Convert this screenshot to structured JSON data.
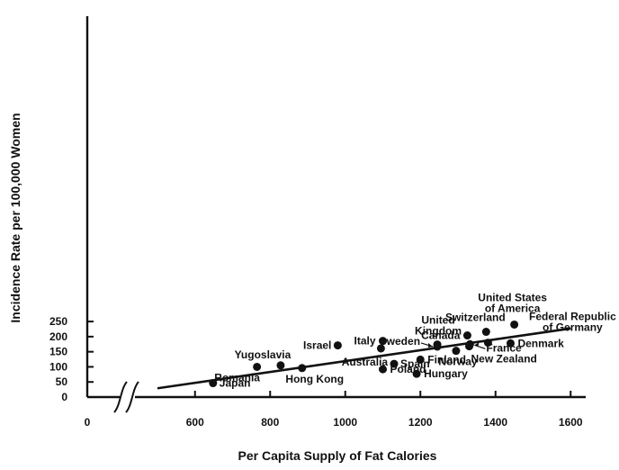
{
  "chart_data": {
    "type": "scatter",
    "title": "",
    "xlabel": "Per Capita Supply of Fat Calories",
    "ylabel": "Incidence Rate per 100,000 Women",
    "xlim": [
      500,
      1600
    ],
    "ylim": [
      0,
      260
    ],
    "x_axis_break": true,
    "grid": false,
    "x_ticks": [
      0,
      600,
      800,
      1000,
      1200,
      1400,
      1600
    ],
    "y_ticks": [
      0,
      50,
      100,
      150,
      200,
      250
    ],
    "points": [
      {
        "label": "United States of America",
        "x": 1450,
        "y": 240
      },
      {
        "label": "Switzerland",
        "x": 1375,
        "y": 216
      },
      {
        "label": "Canada",
        "x": 1325,
        "y": 204
      },
      {
        "label": "Federal Republic of Germany",
        "x": 1380,
        "y": 180
      },
      {
        "label": "Denmark",
        "x": 1440,
        "y": 178
      },
      {
        "label": "Italy",
        "x": 1100,
        "y": 186
      },
      {
        "label": "United Kingdom",
        "x": 1245,
        "y": 174
      },
      {
        "label": "Israel",
        "x": 980,
        "y": 171
      },
      {
        "label": "Sweden",
        "x": 1245,
        "y": 167
      },
      {
        "label": "France",
        "x": 1332,
        "y": 175
      },
      {
        "label": "New Zealand",
        "x": 1330,
        "y": 168
      },
      {
        "label": "Australia",
        "x": 1095,
        "y": 161
      },
      {
        "label": "Norway",
        "x": 1295,
        "y": 153
      },
      {
        "label": "Finland",
        "x": 1200,
        "y": 124
      },
      {
        "label": "Spain",
        "x": 1130,
        "y": 110
      },
      {
        "label": "Yugoslavia",
        "x": 828,
        "y": 105
      },
      {
        "label": "Romania",
        "x": 765,
        "y": 100
      },
      {
        "label": "Hong Kong",
        "x": 885,
        "y": 96
      },
      {
        "label": "Poland",
        "x": 1100,
        "y": 92
      },
      {
        "label": "Hungary",
        "x": 1190,
        "y": 77
      },
      {
        "label": "Japan",
        "x": 648,
        "y": 46
      }
    ],
    "trend_line": {
      "x": [
        500,
        1600
      ],
      "y": [
        29,
        227
      ]
    }
  }
}
